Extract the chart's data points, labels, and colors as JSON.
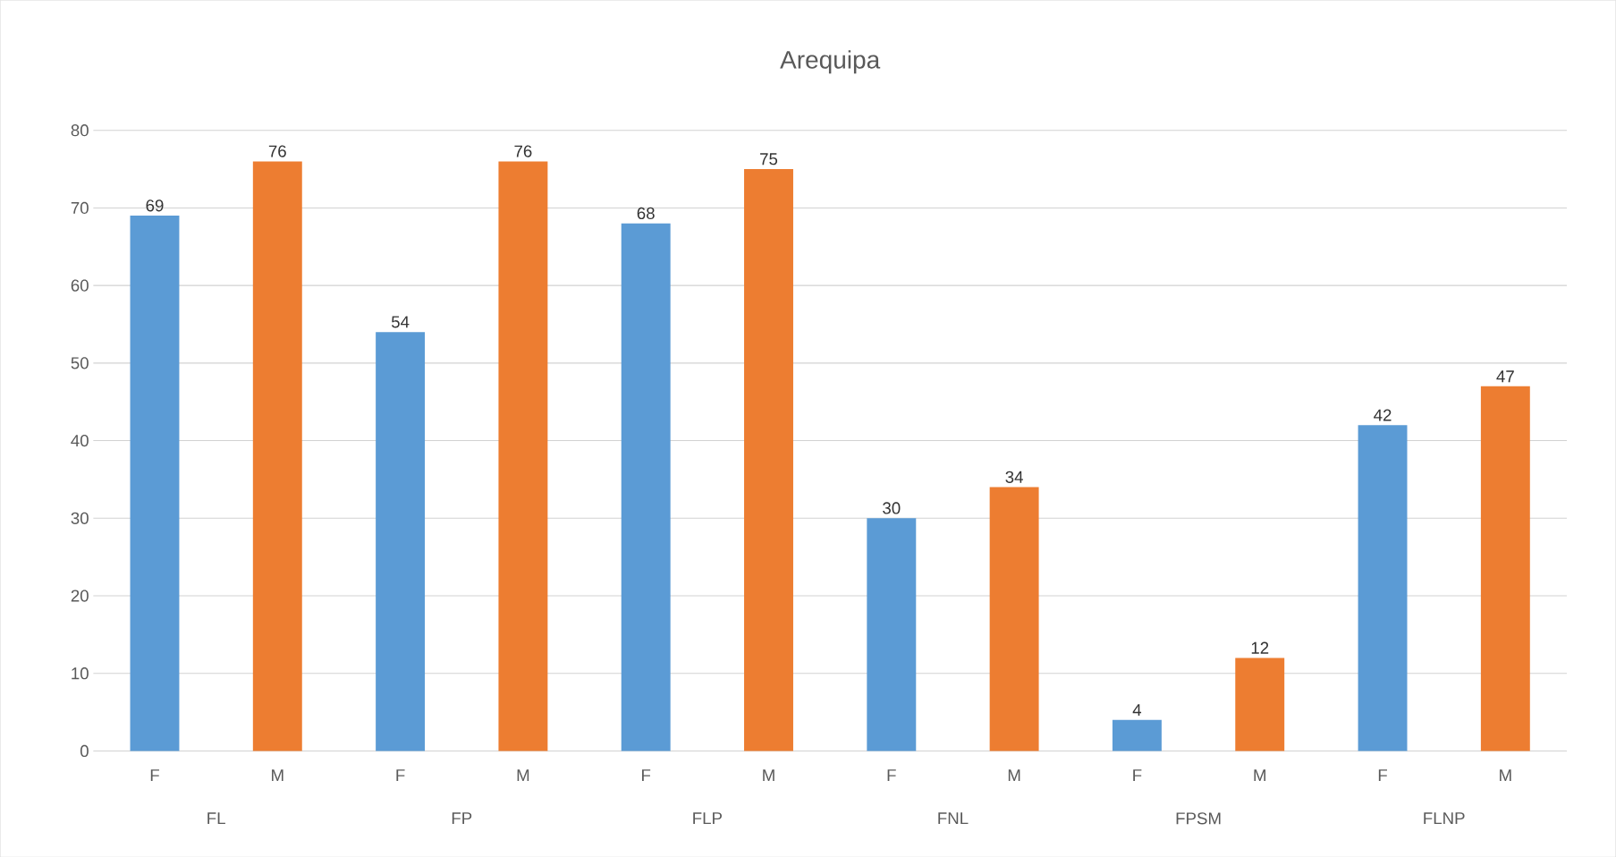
{
  "chart_data": {
    "type": "bar",
    "title": "Arequipa",
    "categories": [
      "FL",
      "FP",
      "FLP",
      "FNL",
      "FPSM",
      "FLNP"
    ],
    "series": [
      {
        "name": "F",
        "color": "#5b9bd5",
        "values": [
          69,
          54,
          68,
          30,
          4,
          42
        ]
      },
      {
        "name": "M",
        "color": "#ed7d31",
        "values": [
          76,
          76,
          75,
          34,
          12,
          47
        ]
      }
    ],
    "ylim": [
      0,
      80
    ],
    "yticks": [
      0,
      10,
      20,
      30,
      40,
      50,
      60,
      70,
      80
    ],
    "grid": "y",
    "data_labels": true
  }
}
